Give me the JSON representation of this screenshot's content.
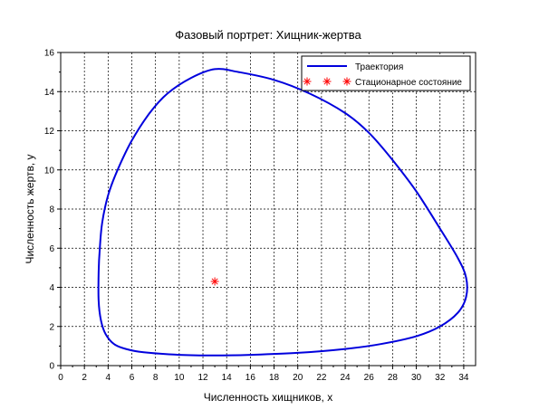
{
  "chart_data": {
    "type": "line",
    "title": "Фазовый портрет: Хищник-жертва",
    "xlabel": "Численность хищников, x",
    "ylabel": "Численность жертв, y",
    "xlim": [
      0,
      35
    ],
    "ylim": [
      0,
      16
    ],
    "xticks": [
      0,
      2,
      4,
      6,
      8,
      10,
      12,
      14,
      16,
      18,
      20,
      22,
      24,
      26,
      28,
      30,
      32,
      34
    ],
    "yticks": [
      0,
      2,
      4,
      6,
      8,
      10,
      12,
      14,
      16
    ],
    "grid": true,
    "legend_position": "top-right",
    "series": [
      {
        "name": "Траектория",
        "kind": "line",
        "color": "#0000dd",
        "points": [
          [
            13.0,
            15.15
          ],
          [
            15.0,
            15.0
          ],
          [
            18.0,
            14.6
          ],
          [
            21.0,
            13.9
          ],
          [
            24.0,
            12.9
          ],
          [
            26.0,
            11.9
          ],
          [
            28.0,
            10.5
          ],
          [
            30.0,
            8.9
          ],
          [
            32.0,
            7.0
          ],
          [
            33.5,
            5.5
          ],
          [
            34.2,
            4.5
          ],
          [
            34.2,
            3.5
          ],
          [
            33.5,
            2.7
          ],
          [
            32.0,
            2.0
          ],
          [
            30.0,
            1.5
          ],
          [
            27.0,
            1.1
          ],
          [
            24.0,
            0.85
          ],
          [
            20.0,
            0.65
          ],
          [
            16.0,
            0.55
          ],
          [
            13.0,
            0.52
          ],
          [
            10.0,
            0.55
          ],
          [
            7.0,
            0.68
          ],
          [
            5.5,
            0.85
          ],
          [
            4.5,
            1.1
          ],
          [
            3.8,
            1.6
          ],
          [
            3.4,
            2.3
          ],
          [
            3.2,
            3.3
          ],
          [
            3.2,
            4.8
          ],
          [
            3.3,
            6.0
          ],
          [
            3.5,
            7.3
          ],
          [
            4.0,
            8.7
          ],
          [
            4.8,
            10.0
          ],
          [
            6.0,
            11.5
          ],
          [
            7.5,
            12.9
          ],
          [
            9.0,
            13.9
          ],
          [
            11.0,
            14.7
          ],
          [
            13.0,
            15.15
          ]
        ]
      },
      {
        "name": "Стационарное состояние",
        "kind": "marker",
        "marker": "asterisk",
        "color": "#ff0000",
        "points": [
          [
            13.0,
            4.3
          ]
        ]
      }
    ]
  }
}
